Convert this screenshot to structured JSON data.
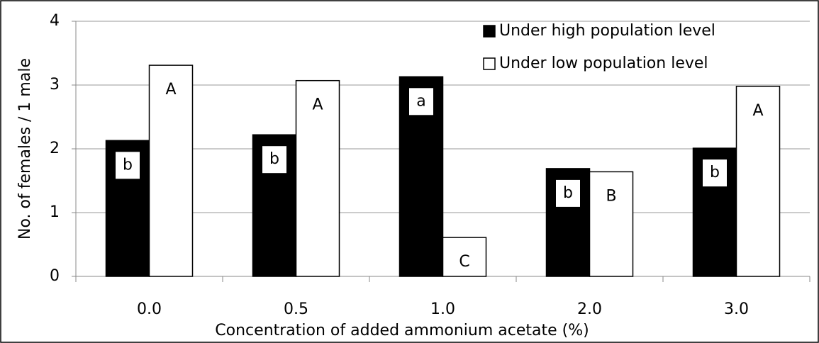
{
  "chart_data": {
    "type": "bar",
    "x_label": "Concentration of added ammonium acetate (%)",
    "y_label": "No. of females / 1 male",
    "categories": [
      "0.0",
      "0.5",
      "1.0",
      "2.0",
      "3.0"
    ],
    "series": [
      {
        "name": "Under high population level",
        "color": "#000000",
        "values": [
          2.13,
          2.22,
          3.13,
          1.69,
          2.01
        ],
        "labels": [
          "b",
          "b",
          "a",
          "b",
          "b"
        ]
      },
      {
        "name": "Under low population level",
        "color": "#ffffff",
        "values": [
          3.31,
          3.07,
          0.61,
          1.64,
          2.98
        ],
        "labels": [
          "A",
          "A",
          "C",
          "B",
          "A"
        ]
      }
    ],
    "ylim": [
      0,
      4
    ],
    "yticks": [
      0,
      1,
      2,
      3,
      4
    ],
    "grid": true,
    "legend": "upper right"
  }
}
